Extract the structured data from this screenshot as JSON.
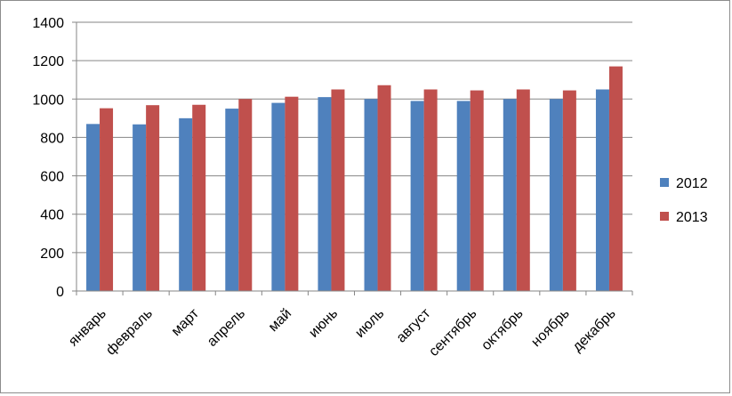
{
  "chart_data": {
    "type": "bar",
    "categories": [
      "январь",
      "февраль",
      "март",
      "апрель",
      "май",
      "июнь",
      "июль",
      "август",
      "сентябрь",
      "октябрь",
      "ноябрь",
      "декабрь"
    ],
    "series": [
      {
        "name": "2012",
        "color": "#4f81bd",
        "values": [
          870,
          868,
          900,
          950,
          980,
          1010,
          1000,
          990,
          990,
          1000,
          1000,
          1050
        ]
      },
      {
        "name": "2013",
        "color": "#c0504d",
        "values": [
          952,
          968,
          970,
          1000,
          1012,
          1050,
          1072,
          1050,
          1045,
          1050,
          1045,
          1170
        ]
      }
    ],
    "title": "",
    "xlabel": "",
    "ylabel": "",
    "ylim": [
      0,
      1400
    ],
    "yticks": [
      0,
      200,
      400,
      600,
      800,
      1000,
      1200,
      1400
    ],
    "grid": true,
    "legend_position": "right"
  }
}
